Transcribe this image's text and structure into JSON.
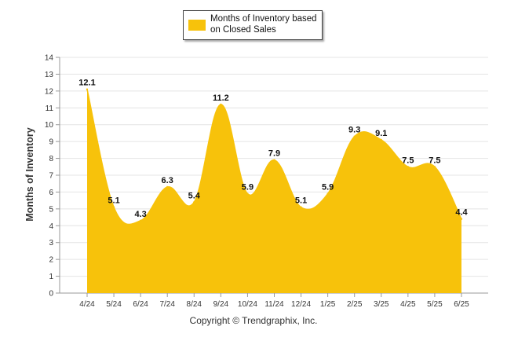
{
  "chart_data": {
    "type": "area",
    "categories": [
      "4/24",
      "5/24",
      "6/24",
      "7/24",
      "8/24",
      "9/24",
      "10/24",
      "11/24",
      "12/24",
      "1/25",
      "2/25",
      "3/25",
      "4/25",
      "5/25",
      "6/25"
    ],
    "series": [
      {
        "name": "Months of Inventory based on Closed Sales",
        "values": [
          12.1,
          5.1,
          4.3,
          6.3,
          5.4,
          11.2,
          5.9,
          7.9,
          5.1,
          5.9,
          9.3,
          9.1,
          7.5,
          7.5,
          4.4
        ]
      }
    ],
    "data_labels": [
      "12.1",
      "5.1",
      "4.3",
      "6.3",
      "5.4",
      "11.2",
      "5.9",
      "7.9",
      "5.1",
      "5.9",
      "9.3",
      "9.1",
      "7.5",
      "7.5",
      "4.4"
    ],
    "ylabel": "Months of Inventory",
    "xlabel": "",
    "ylim": [
      0,
      14
    ],
    "yticks": [
      "0",
      "1",
      "2",
      "3",
      "4",
      "5",
      "6",
      "7",
      "8",
      "9",
      "10",
      "11",
      "12",
      "13",
      "14"
    ],
    "grid": true,
    "legend": "top-center",
    "color": "#f7c20b"
  },
  "footer": "Copyright © Trendgraphix, Inc."
}
